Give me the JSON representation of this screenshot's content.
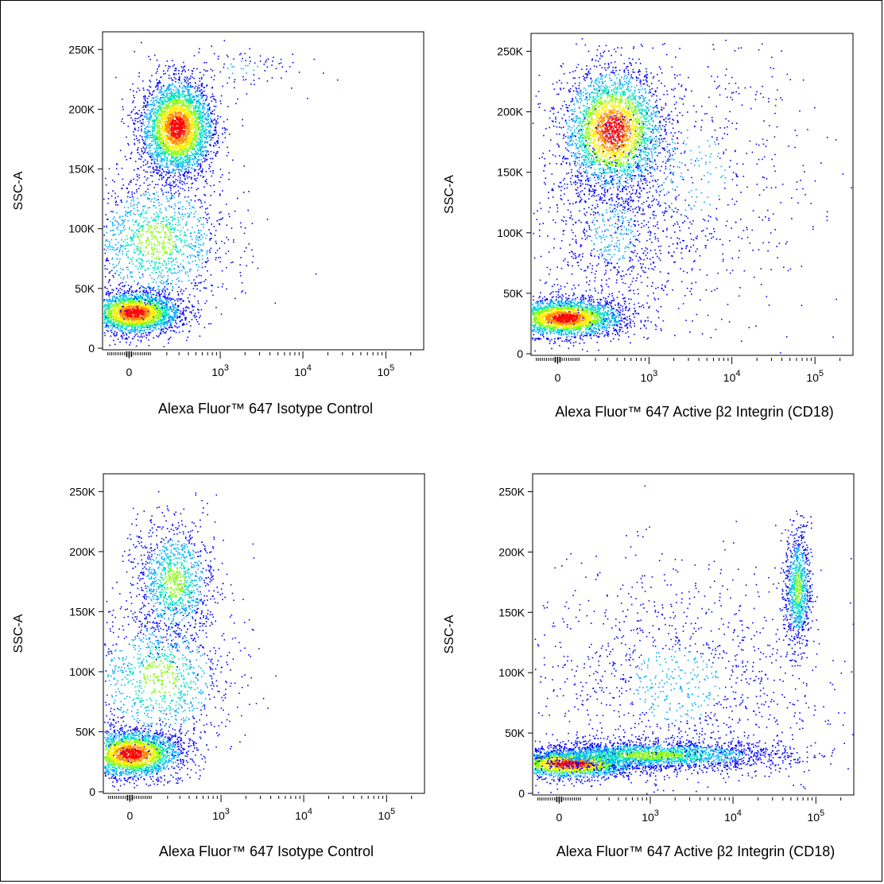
{
  "colors": {
    "density": [
      "#0000ff",
      "#00aaff",
      "#00e0c0",
      "#7fff00",
      "#ffee00",
      "#ff8800",
      "#ff0000"
    ],
    "axis": "#000000",
    "background": "#ffffff"
  },
  "chart_data": [
    {
      "type": "scatter",
      "panel": "top-left",
      "xlabel": "Alexa Fluor™ 647 Isotype Control",
      "ylabel": "SSC-A",
      "xscale": "biexponential",
      "yticks": [
        "0",
        "50K",
        "100K",
        "150K",
        "200K",
        "250K"
      ],
      "ylim": [
        0,
        262144
      ],
      "xticks": [
        {
          "value": 0,
          "label": "0"
        },
        {
          "value": 1000,
          "label": "10^3"
        },
        {
          "value": 10000,
          "label": "10^4"
        },
        {
          "value": 100000,
          "label": "10^5"
        }
      ],
      "populations": [
        {
          "x": 20,
          "y": 30000,
          "sx": 0.28,
          "sy": 9000,
          "n": 2600,
          "density": "high",
          "note": "low-SSC cluster"
        },
        {
          "x": 130,
          "y": 90000,
          "sx": 0.45,
          "sy": 30000,
          "n": 1400,
          "density": "medium"
        },
        {
          "x": 280,
          "y": 185000,
          "sx": 0.22,
          "sy": 20000,
          "n": 3400,
          "density": "high"
        },
        {
          "x": 1800,
          "y": 235000,
          "sx": 0.35,
          "sy": 10000,
          "n": 90,
          "density": "low"
        }
      ]
    },
    {
      "type": "scatter",
      "panel": "top-right",
      "xlabel": "Alexa Fluor™ 647 Active β2 Integrin (CD18)",
      "ylabel": "SSC-A",
      "xscale": "biexponential",
      "yticks": [
        "0",
        "50K",
        "100K",
        "150K",
        "200K",
        "250K"
      ],
      "ylim": [
        0,
        262144
      ],
      "xticks": [
        {
          "value": 0,
          "label": "0"
        },
        {
          "value": 1000,
          "label": "10^3"
        },
        {
          "value": 10000,
          "label": "10^4"
        },
        {
          "value": 100000,
          "label": "10^5"
        }
      ],
      "populations": [
        {
          "x": 30,
          "y": 30000,
          "sx": 0.35,
          "sy": 8000,
          "n": 2600,
          "density": "high"
        },
        {
          "x": 350,
          "y": 185000,
          "sx": 0.3,
          "sy": 25000,
          "n": 3000,
          "density": "high"
        },
        {
          "x": 350,
          "y": 100000,
          "sx": 0.45,
          "sy": 40000,
          "n": 900,
          "density": "low"
        },
        {
          "x": 3000,
          "y": 150000,
          "sx": 0.75,
          "sy": 60000,
          "n": 700,
          "density": "low"
        }
      ]
    },
    {
      "type": "scatter",
      "panel": "bottom-left",
      "xlabel": "Alexa Fluor™ 647 Isotype Control",
      "ylabel": "SSC-A",
      "xscale": "biexponential",
      "yticks": [
        "0",
        "50K",
        "100K",
        "150K",
        "200K",
        "250K"
      ],
      "ylim": [
        0,
        262144
      ],
      "xticks": [
        {
          "value": 0,
          "label": "0"
        },
        {
          "value": 1000,
          "label": "10^3"
        },
        {
          "value": 10000,
          "label": "10^4"
        },
        {
          "value": 100000,
          "label": "10^5"
        }
      ],
      "populations": [
        {
          "x": 5,
          "y": 32000,
          "sx": 0.3,
          "sy": 10000,
          "n": 2600,
          "density": "high"
        },
        {
          "x": 140,
          "y": 95000,
          "sx": 0.45,
          "sy": 30000,
          "n": 1100,
          "density": "medium"
        },
        {
          "x": 250,
          "y": 175000,
          "sx": 0.25,
          "sy": 25000,
          "n": 1200,
          "density": "medium"
        }
      ]
    },
    {
      "type": "scatter",
      "panel": "bottom-right",
      "xlabel": "Alexa Fluor™ 647 Active β2 Integrin (CD18)",
      "ylabel": "SSC-A",
      "xscale": "biexponential",
      "yticks": [
        "0",
        "50K",
        "100K",
        "150K",
        "200K",
        "250K"
      ],
      "ylim": [
        0,
        262144
      ],
      "xticks": [
        {
          "value": 0,
          "label": "0"
        },
        {
          "value": 1000,
          "label": "10^3"
        },
        {
          "value": 10000,
          "label": "10^4"
        },
        {
          "value": 100000,
          "label": "10^5"
        }
      ],
      "populations": [
        {
          "x": 50,
          "y": 25000,
          "sx": 0.4,
          "sy": 6000,
          "n": 2200,
          "density": "high"
        },
        {
          "x": 1000,
          "y": 32000,
          "sx": 0.8,
          "sy": 6000,
          "n": 2400,
          "density": "medium"
        },
        {
          "x": 60000,
          "y": 170000,
          "sx": 0.08,
          "sy": 25000,
          "n": 900,
          "density": "medium"
        },
        {
          "x": 2000,
          "y": 90000,
          "sx": 0.9,
          "sy": 50000,
          "n": 1300,
          "density": "low"
        }
      ]
    }
  ]
}
